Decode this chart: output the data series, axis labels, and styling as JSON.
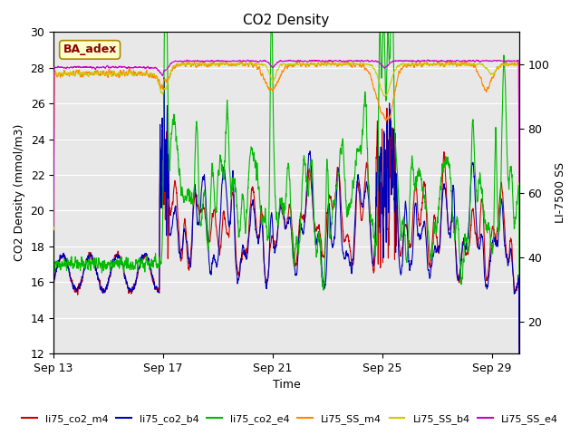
{
  "title": "CO2 Density",
  "xlabel": "Time",
  "ylabel_left": "CO2 Density (mmol/m3)",
  "ylabel_right": "LI-7500 SS",
  "ylim_left": [
    12,
    30
  ],
  "ylim_right": [
    10,
    110
  ],
  "annotation": "BA_adex",
  "x_ticks_positions": [
    0,
    4,
    8,
    12,
    16
  ],
  "x_ticks_labels": [
    "Sep 13",
    "Sep 17",
    "Sep 21",
    "Sep 25",
    "Sep 29"
  ],
  "xlim": [
    0,
    17
  ],
  "legend_entries": [
    {
      "label": "li75_co2_m4",
      "color": "#cc0000"
    },
    {
      "label": "li75_co2_b4",
      "color": "#0000bb"
    },
    {
      "label": "li75_co2_e4",
      "color": "#00bb00"
    },
    {
      "label": "Li75_SS_m4",
      "color": "#ff8800"
    },
    {
      "label": "Li75_SS_b4",
      "color": "#cccc00"
    },
    {
      "label": "Li75_SS_e4",
      "color": "#cc00cc"
    }
  ],
  "bg_color": "#e8e8e8",
  "fig_color": "#ffffff",
  "grid_color": "#ffffff",
  "annotation_fc": "#ffffcc",
  "annotation_ec": "#aa8800",
  "annotation_tc": "#8b0000",
  "title_fontsize": 11,
  "axis_fontsize": 9,
  "tick_fontsize": 9,
  "legend_fontsize": 8,
  "lw": 0.8
}
